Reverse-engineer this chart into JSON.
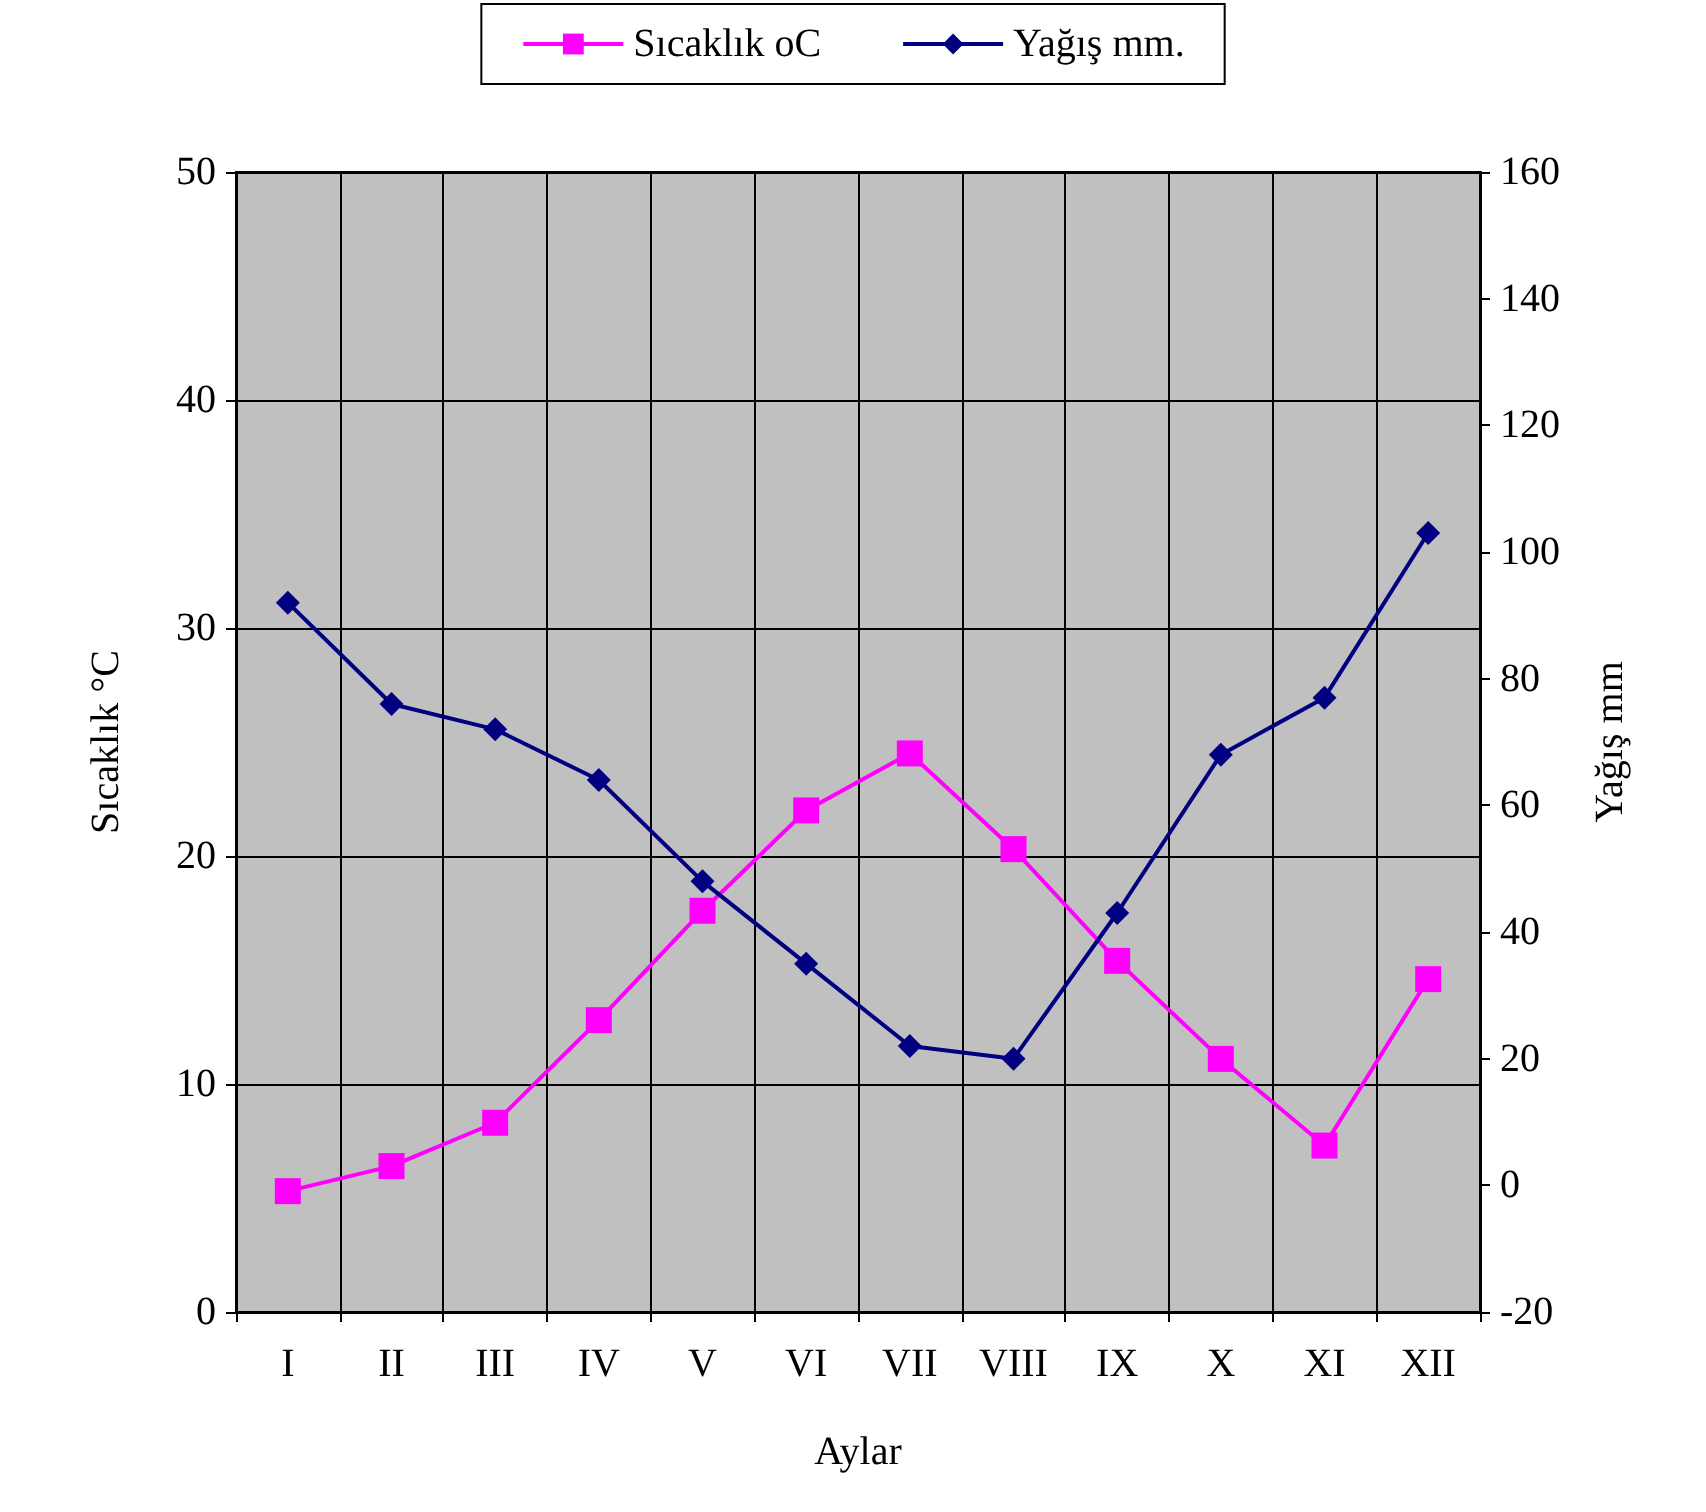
{
  "chart_data": {
    "type": "line",
    "xlabel": "Aylar",
    "ylabel": "Sıcaklık °C",
    "y2label": "Yağış mm",
    "categories": [
      "I",
      "II",
      "III",
      "IV",
      "V",
      "VI",
      "VII",
      "VIII",
      "IX",
      "X",
      "XI",
      "XII"
    ],
    "series": [
      {
        "name": "Sıcaklık oC",
        "color": "#ff00ff",
        "marker": "square",
        "values": [
          5.3,
          6.4,
          8.3,
          12.8,
          17.6,
          22.0,
          24.5,
          20.3,
          15.4,
          11.1,
          7.3,
          14.6
        ]
      },
      {
        "name": "Yağış mm.",
        "color": "#000080",
        "marker": "diamond",
        "axis": "y2",
        "values": [
          92,
          76,
          72,
          64,
          48,
          35,
          22,
          20,
          43,
          68,
          77,
          103
        ]
      }
    ],
    "ylim": [
      0,
      50
    ],
    "yticks": [
      0,
      10,
      20,
      30,
      40,
      50
    ],
    "y2lim": [
      -20,
      160
    ],
    "y2ticks": [
      -20,
      0,
      20,
      40,
      60,
      80,
      100,
      120,
      140,
      160
    ],
    "grid": true,
    "legend": "top",
    "line_style": "solid"
  }
}
